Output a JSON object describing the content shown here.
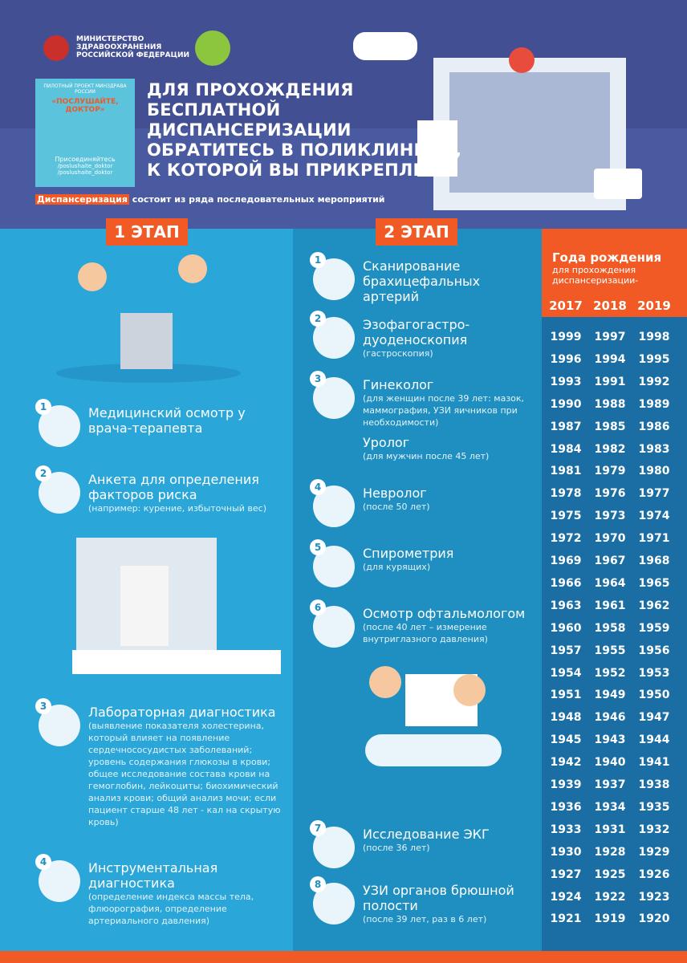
{
  "header": {
    "ministry": [
      "МИНИСТЕРСТВО",
      "ЗДРАВООХРАНЕНИЯ",
      "РОССИЙСКОЙ ФЕДЕРАЦИИ"
    ],
    "project": {
      "label": "ПИЛОТНЫЙ ПРОЕКТ МИНЗДРАВА РОССИИ",
      "name": "«ПОСЛУШАЙТЕ, ДОКТОР»",
      "join": "Присоединяйтесь",
      "links": [
        "/poslushaite_doktor",
        "/poslushaite_doktor"
      ]
    },
    "title": [
      "ДЛЯ ПРОХОЖДЕНИЯ",
      "БЕСПЛАТНОЙ",
      "ДИСПАНСЕРИЗАЦИИ",
      "ОБРАТИТЕСЬ В ПОЛИКЛИНИКУ,",
      "К КОТОРОЙ ВЫ ПРИКРЕПЛЕНЫ"
    ],
    "subtitle": {
      "highlight": "Диспансеризация",
      "text": "состоит из ряда последовательных мероприятий"
    }
  },
  "stage1": {
    "label": "1 ЭТАП",
    "items": [
      {
        "number": 1,
        "title": "Медицинский осмотр у врача-терапевта"
      },
      {
        "number": 2,
        "title": "Анкета для определения факторов риска",
        "note": "(например: курение, избыточный вес)"
      },
      {
        "number": 3,
        "title": "Лабораторная диагностика",
        "note": "(выявление показателя холестерина, который влияет на появление сердечнососудистых заболеваний; уровень содержания глюкозы в крови; общее исследование состава крови на гемоглобин, лейкоциты; биохимический анализ крови; общий анализ мочи; если пациент старше 48 лет - кал на скрытую кровь)"
      },
      {
        "number": 4,
        "title": "Инструментальная диагностика",
        "note": "(определение индекса массы тела, флюорография, определение артериального давления)"
      }
    ]
  },
  "stage2": {
    "label": "2 ЭТАП",
    "items": [
      {
        "number": 1,
        "title": "Сканирование брахицефальных артерий"
      },
      {
        "number": 2,
        "title": "Эзофагогастро-дуоденоскопия",
        "note": "(гастроскопия)"
      },
      {
        "number": 3,
        "title": "Гинеколог",
        "note": "(для женщин после 39 лет: мазок, маммография, УЗИ яичников при необходимости)",
        "extra_title": "Уролог",
        "extra_note": "(для мужчин после 45 лет)"
      },
      {
        "number": 4,
        "title": "Невролог",
        "note": "(после 50 лет)"
      },
      {
        "number": 5,
        "title": "Спирометрия",
        "note": "(для курящих)"
      },
      {
        "number": 6,
        "title": "Осмотр офтальмологом",
        "note": "(после 40 лет – измерение внутриглазного давления)"
      },
      {
        "number": 7,
        "title": "Исследование ЭКГ",
        "note": "(после 36 лет)"
      },
      {
        "number": 8,
        "title": "УЗИ органов брюшной полости",
        "note": "(после 39 лет, раз в 6 лет)"
      }
    ]
  },
  "years": {
    "title": "Года рождения",
    "subtitle": "для прохождения диспансеризации-",
    "columns": [
      2017,
      2018,
      2019
    ],
    "rows": [
      [
        1999,
        1997,
        1998
      ],
      [
        1996,
        1994,
        1995
      ],
      [
        1993,
        1991,
        1992
      ],
      [
        1990,
        1988,
        1989
      ],
      [
        1987,
        1985,
        1986
      ],
      [
        1984,
        1982,
        1983
      ],
      [
        1981,
        1979,
        1980
      ],
      [
        1978,
        1976,
        1977
      ],
      [
        1975,
        1973,
        1974
      ],
      [
        1972,
        1970,
        1971
      ],
      [
        1969,
        1967,
        1968
      ],
      [
        1966,
        1964,
        1965
      ],
      [
        1963,
        1961,
        1962
      ],
      [
        1960,
        1958,
        1959
      ],
      [
        1957,
        1955,
        1956
      ],
      [
        1954,
        1952,
        1953
      ],
      [
        1951,
        1949,
        1950
      ],
      [
        1948,
        1946,
        1947
      ],
      [
        1945,
        1943,
        1944
      ],
      [
        1942,
        1940,
        1941
      ],
      [
        1939,
        1937,
        1938
      ],
      [
        1936,
        1934,
        1935
      ],
      [
        1933,
        1931,
        1932
      ],
      [
        1930,
        1928,
        1929
      ],
      [
        1927,
        1925,
        1926
      ],
      [
        1924,
        1922,
        1923
      ],
      [
        1921,
        1919,
        1920
      ]
    ]
  }
}
